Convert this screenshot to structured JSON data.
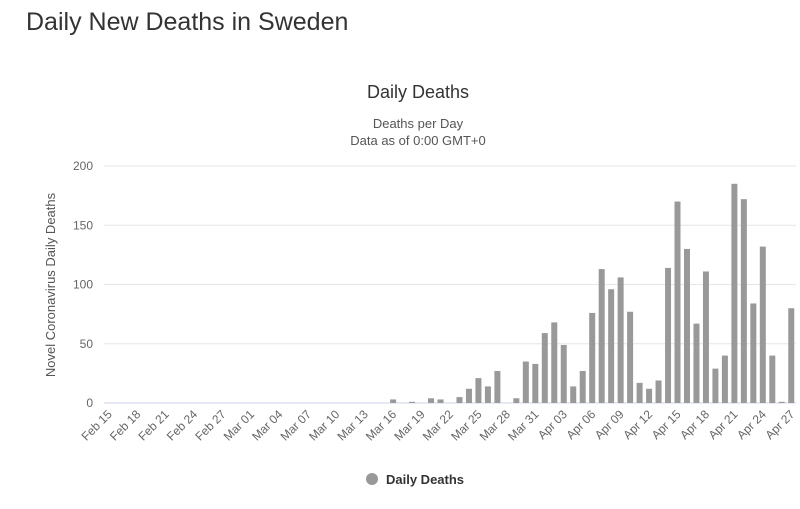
{
  "page_title": "Daily New Deaths in Sweden",
  "chart_data": {
    "type": "bar",
    "title": "Daily Deaths",
    "subtitle_line1": "Deaths per Day",
    "subtitle_line2": "Data as of 0:00 GMT+0",
    "ylabel": "Novel Coronavirus Daily Deaths",
    "xlabel": "",
    "ylim": [
      0,
      200
    ],
    "yticks": [
      "0",
      "50",
      "100",
      "150",
      "200"
    ],
    "grid": true,
    "legend": "Daily Deaths",
    "legend_position": "bottom",
    "color": "#999999",
    "categories": [
      "Feb 15",
      "Feb 16",
      "Feb 17",
      "Feb 18",
      "Feb 19",
      "Feb 20",
      "Feb 21",
      "Feb 22",
      "Feb 23",
      "Feb 24",
      "Feb 25",
      "Feb 26",
      "Feb 27",
      "Feb 28",
      "Feb 29",
      "Mar 01",
      "Mar 02",
      "Mar 03",
      "Mar 04",
      "Mar 05",
      "Mar 06",
      "Mar 07",
      "Mar 08",
      "Mar 09",
      "Mar 10",
      "Mar 11",
      "Mar 12",
      "Mar 13",
      "Mar 14",
      "Mar 15",
      "Mar 16",
      "Mar 17",
      "Mar 18",
      "Mar 19",
      "Mar 20",
      "Mar 21",
      "Mar 22",
      "Mar 23",
      "Mar 24",
      "Mar 25",
      "Mar 26",
      "Mar 27",
      "Mar 28",
      "Mar 29",
      "Mar 30",
      "Mar 31",
      "Apr 01",
      "Apr 02",
      "Apr 03",
      "Apr 04",
      "Apr 05",
      "Apr 06",
      "Apr 07",
      "Apr 08",
      "Apr 09",
      "Apr 10",
      "Apr 11",
      "Apr 12",
      "Apr 13",
      "Apr 14",
      "Apr 15",
      "Apr 16",
      "Apr 17",
      "Apr 18",
      "Apr 19",
      "Apr 20",
      "Apr 21",
      "Apr 22",
      "Apr 23",
      "Apr 24",
      "Apr 25",
      "Apr 26",
      "Apr 27"
    ],
    "values": [
      0,
      0,
      0,
      0,
      0,
      0,
      0,
      0,
      0,
      0,
      0,
      0,
      0,
      0,
      0,
      0,
      0,
      0,
      0,
      0,
      0,
      0,
      0,
      0,
      0,
      0,
      0,
      0,
      0,
      0,
      3,
      0,
      1,
      0,
      4,
      3,
      0,
      5,
      12,
      21,
      14,
      27,
      0,
      4,
      35,
      33,
      59,
      68,
      49,
      14,
      27,
      76,
      113,
      96,
      106,
      77,
      17,
      12,
      19,
      114,
      170,
      130,
      67,
      111,
      29,
      40,
      185,
      172,
      84,
      132,
      40,
      1,
      80
    ],
    "xtick_labels": [
      "Feb 15",
      "Feb 18",
      "Feb 21",
      "Feb 24",
      "Feb 27",
      "Mar 01",
      "Mar 04",
      "Mar 07",
      "Mar 10",
      "Mar 13",
      "Mar 16",
      "Mar 19",
      "Mar 22",
      "Mar 25",
      "Mar 28",
      "Mar 31",
      "Apr 03",
      "Apr 06",
      "Apr 09",
      "Apr 12",
      "Apr 15",
      "Apr 18",
      "Apr 21",
      "Apr 24",
      "Apr 27"
    ]
  }
}
